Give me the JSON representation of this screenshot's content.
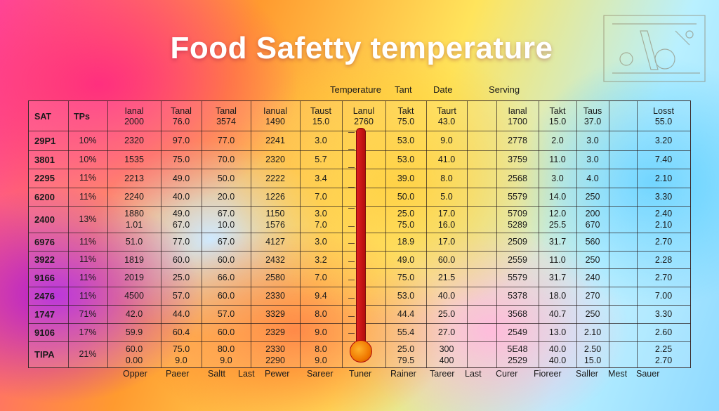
{
  "title": "Food Safetty temperature",
  "top_labels": [
    "Temperature",
    "Tant",
    "Date",
    "Serving"
  ],
  "header_row": [
    {
      "c": [
        "SAT"
      ]
    },
    {
      "c": [
        "TPs"
      ]
    },
    {
      "c": [
        "Ianal",
        "2000"
      ]
    },
    {
      "c": [
        "Tanal",
        "76.0"
      ]
    },
    {
      "c": [
        "Tanal",
        "3574"
      ]
    },
    {
      "c": [
        "Ianual",
        "1490"
      ]
    },
    {
      "c": [
        "Taust",
        "15.0"
      ]
    },
    {
      "c": [
        "Lanul",
        "2760"
      ]
    },
    {
      "c": [
        "Takt",
        "75.0"
      ]
    },
    {
      "c": [
        "Taurt",
        "43.0"
      ]
    },
    {
      "c": [
        ""
      ]
    },
    {
      "c": [
        "Ianal",
        "1700"
      ]
    },
    {
      "c": [
        "Takt",
        "15.0"
      ]
    },
    {
      "c": [
        "Taus",
        "37.0"
      ]
    },
    {
      "c": [
        ""
      ]
    },
    {
      "c": [
        "Losst",
        "55.0"
      ]
    }
  ],
  "rows": [
    {
      "id": "29P1",
      "pct": "10%",
      "v": [
        [
          "2320"
        ],
        [
          "97.0"
        ],
        [
          "77.0"
        ],
        [
          "2241"
        ],
        [
          "3.0"
        ],
        [
          ""
        ],
        [
          "53.0"
        ],
        [
          "9.0"
        ],
        [
          ""
        ],
        [
          "2778"
        ],
        [
          "2.0"
        ],
        [
          "3.0"
        ],
        [
          ""
        ],
        [
          "3.20"
        ]
      ]
    },
    {
      "id": "3801",
      "pct": "10%",
      "v": [
        [
          "1535"
        ],
        [
          "75.0"
        ],
        [
          "70.0"
        ],
        [
          "2320"
        ],
        [
          "5.7"
        ],
        [
          ""
        ],
        [
          "53.0"
        ],
        [
          "41.0"
        ],
        [
          ""
        ],
        [
          "3759"
        ],
        [
          "11.0"
        ],
        [
          "3.0"
        ],
        [
          ""
        ],
        [
          "7.40"
        ]
      ]
    },
    {
      "id": "2295",
      "pct": "11%",
      "v": [
        [
          "2213"
        ],
        [
          "49.0"
        ],
        [
          "50.0"
        ],
        [
          "2222"
        ],
        [
          "3.4"
        ],
        [
          ""
        ],
        [
          "39.0"
        ],
        [
          "8.0"
        ],
        [
          ""
        ],
        [
          "2568"
        ],
        [
          "3.0"
        ],
        [
          "4.0"
        ],
        [
          ""
        ],
        [
          "2.10"
        ]
      ]
    },
    {
      "id": "6200",
      "pct": "11%",
      "v": [
        [
          "2240"
        ],
        [
          "40.0"
        ],
        [
          "20.0"
        ],
        [
          "1226"
        ],
        [
          "7.0"
        ],
        [
          ""
        ],
        [
          "50.0"
        ],
        [
          "5.0"
        ],
        [
          ""
        ],
        [
          "5579"
        ],
        [
          "14.0"
        ],
        [
          "250"
        ],
        [
          ""
        ],
        [
          "3.30"
        ]
      ]
    },
    {
      "id": "2400",
      "pct": "13%",
      "v": [
        [
          "1880",
          "1.01"
        ],
        [
          "49.0",
          "67.0"
        ],
        [
          "67.0",
          "10.0"
        ],
        [
          "1150",
          "1576"
        ],
        [
          "3.0",
          "7.0"
        ],
        [
          "",
          ""
        ],
        [
          "25.0",
          "75.0"
        ],
        [
          "17.0",
          "16.0"
        ],
        [
          "",
          ""
        ],
        [
          "5709",
          "5289"
        ],
        [
          "12.0",
          "25.5"
        ],
        [
          "200",
          "670"
        ],
        [
          "",
          ""
        ],
        [
          "2.40",
          "2.10"
        ]
      ]
    },
    {
      "id": "6976",
      "pct": "11%",
      "v": [
        [
          "51.0"
        ],
        [
          "77.0"
        ],
        [
          "67.0"
        ],
        [
          "4127"
        ],
        [
          "3.0"
        ],
        [
          ""
        ],
        [
          "18.9"
        ],
        [
          "17.0"
        ],
        [
          ""
        ],
        [
          "2509"
        ],
        [
          "31.7"
        ],
        [
          "560"
        ],
        [
          ""
        ],
        [
          "2.70"
        ]
      ]
    },
    {
      "id": "3922",
      "pct": "11%",
      "v": [
        [
          "1819"
        ],
        [
          "60.0"
        ],
        [
          "60.0"
        ],
        [
          "2432"
        ],
        [
          "3.2"
        ],
        [
          ""
        ],
        [
          "49.0"
        ],
        [
          "60.0"
        ],
        [
          ""
        ],
        [
          "2559"
        ],
        [
          "11.0"
        ],
        [
          "250"
        ],
        [
          ""
        ],
        [
          "2.28"
        ]
      ]
    },
    {
      "id": "9166",
      "pct": "11%",
      "v": [
        [
          "2019"
        ],
        [
          "25.0"
        ],
        [
          "66.0"
        ],
        [
          "2580"
        ],
        [
          "7.0"
        ],
        [
          ""
        ],
        [
          "75.0"
        ],
        [
          "21.5"
        ],
        [
          ""
        ],
        [
          "5579"
        ],
        [
          "31.7"
        ],
        [
          "240"
        ],
        [
          ""
        ],
        [
          "2.70"
        ]
      ]
    },
    {
      "id": "2476",
      "pct": "11%",
      "v": [
        [
          "4500"
        ],
        [
          "57.0"
        ],
        [
          "60.0"
        ],
        [
          "2330"
        ],
        [
          "9.4"
        ],
        [
          ""
        ],
        [
          "53.0"
        ],
        [
          "40.0"
        ],
        [
          ""
        ],
        [
          "5378"
        ],
        [
          "18.0"
        ],
        [
          "270"
        ],
        [
          ""
        ],
        [
          "7.00"
        ]
      ]
    },
    {
      "id": "1747",
      "pct": "71%",
      "v": [
        [
          "42.0"
        ],
        [
          "44.0"
        ],
        [
          "57.0"
        ],
        [
          "3329"
        ],
        [
          "8.0"
        ],
        [
          ""
        ],
        [
          "44.4"
        ],
        [
          "25.0"
        ],
        [
          ""
        ],
        [
          "3568"
        ],
        [
          "40.7"
        ],
        [
          "250"
        ],
        [
          ""
        ],
        [
          "3.30"
        ]
      ]
    },
    {
      "id": "9106",
      "pct": "17%",
      "v": [
        [
          "59.9"
        ],
        [
          "60.4"
        ],
        [
          "60.0"
        ],
        [
          "2329"
        ],
        [
          "9.0"
        ],
        [
          ""
        ],
        [
          "55.4"
        ],
        [
          "27.0"
        ],
        [
          ""
        ],
        [
          "2549"
        ],
        [
          "13.0"
        ],
        [
          "2.10"
        ],
        [
          ""
        ],
        [
          "2.60"
        ]
      ]
    },
    {
      "id": "TIPA",
      "pct": "21%",
      "v": [
        [
          "60.0",
          "0.00"
        ],
        [
          "75.0",
          "9.0"
        ],
        [
          "80.0",
          "9.0"
        ],
        [
          "2330",
          "2290"
        ],
        [
          "8.0",
          "9.0"
        ],
        [
          "",
          ""
        ],
        [
          "25.0",
          "79.5"
        ],
        [
          "300",
          "400"
        ],
        [
          "",
          ""
        ],
        [
          "5E48",
          "2529"
        ],
        [
          "40.0",
          "40.0"
        ],
        [
          "2.50",
          "15.0"
        ],
        [
          "",
          " "
        ],
        [
          "2.25",
          "2.70"
        ]
      ]
    }
  ],
  "footer_labels": [
    "Opper",
    "Paeer",
    "Saltt",
    "Last",
    "Pewer",
    "Sareer",
    "Tuner",
    "Rainer",
    "Tareer",
    "Last",
    "Curer",
    "Fioreer",
    "Saller",
    "Mest",
    "Sauer"
  ]
}
